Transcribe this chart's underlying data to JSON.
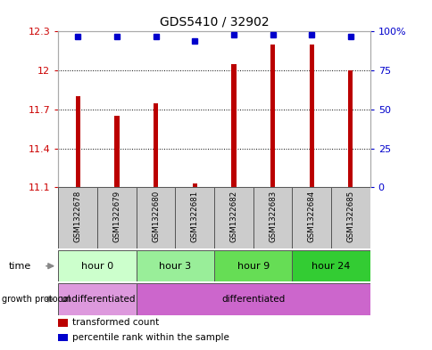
{
  "title": "GDS5410 / 32902",
  "samples": [
    "GSM1322678",
    "GSM1322679",
    "GSM1322680",
    "GSM1322681",
    "GSM1322682",
    "GSM1322683",
    "GSM1322684",
    "GSM1322685"
  ],
  "transformed_counts": [
    11.8,
    11.65,
    11.75,
    11.13,
    12.05,
    12.2,
    12.2,
    12.0
  ],
  "percentile_ranks": [
    97,
    97,
    97,
    94,
    98,
    98,
    98,
    97
  ],
  "y_min": 11.1,
  "y_max": 12.3,
  "y_ticks": [
    11.1,
    11.4,
    11.7,
    12.0,
    12.3
  ],
  "y_tick_labels": [
    "11.1",
    "11.4",
    "11.7",
    "12",
    "12.3"
  ],
  "y2_ticks": [
    0,
    25,
    50,
    75,
    100
  ],
  "y2_tick_labels": [
    "0",
    "25",
    "50",
    "75",
    "100%"
  ],
  "bar_color": "#bb0000",
  "dot_color": "#0000cc",
  "left_label_color": "#cc0000",
  "right_label_color": "#0000cc",
  "time_colors": [
    "#ccffcc",
    "#99ee99",
    "#66dd55",
    "#33cc33"
  ],
  "time_groups": [
    {
      "label": "hour 0",
      "start": 0,
      "end": 2
    },
    {
      "label": "hour 3",
      "start": 2,
      "end": 4
    },
    {
      "label": "hour 9",
      "start": 4,
      "end": 6
    },
    {
      "label": "hour 24",
      "start": 6,
      "end": 8
    }
  ],
  "growth_groups": [
    {
      "label": "undifferentiated",
      "start": 0,
      "end": 2,
      "color": "#dd99dd"
    },
    {
      "label": "differentiated",
      "start": 2,
      "end": 8,
      "color": "#cc66cc"
    }
  ],
  "legend_items": [
    {
      "color": "#bb0000",
      "label": "transformed count"
    },
    {
      "color": "#0000cc",
      "label": "percentile rank within the sample"
    }
  ],
  "bar_width": 0.12
}
